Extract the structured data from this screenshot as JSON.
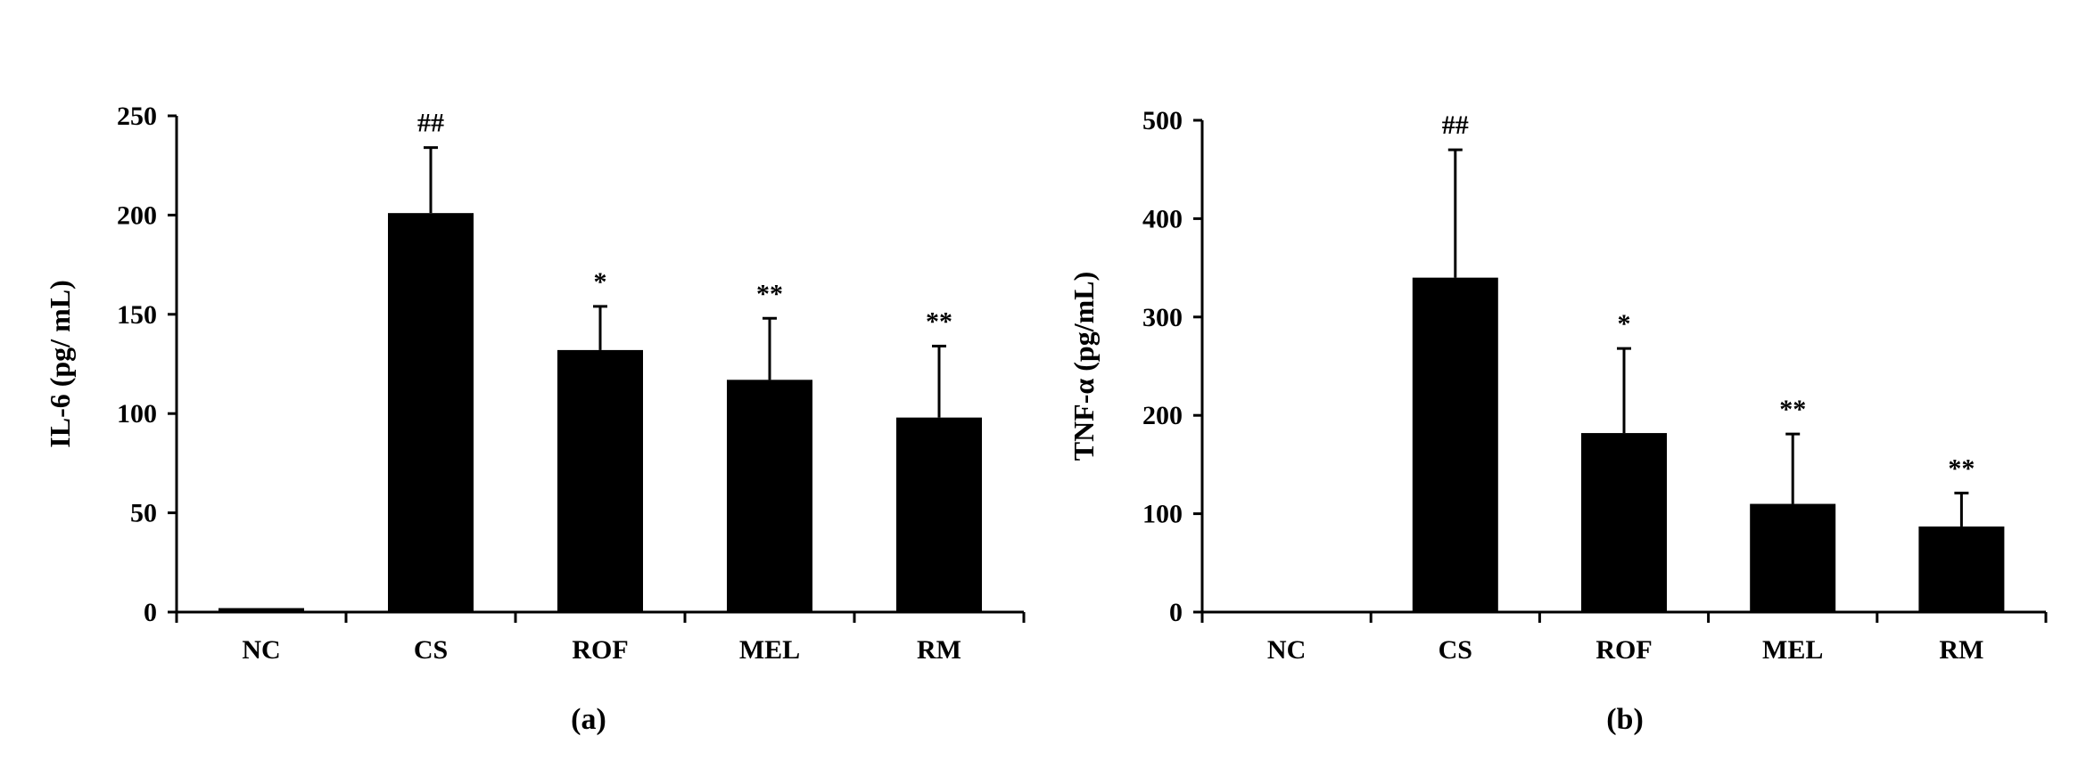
{
  "chart_data": [
    {
      "type": "bar",
      "panel_label": "(a)",
      "ylabel": "IL-6 (pg/ mL)",
      "categories": [
        "NC",
        "CS",
        "ROF",
        "MEL",
        "RM"
      ],
      "values": [
        2,
        201,
        132,
        117,
        98
      ],
      "errors": [
        0,
        33,
        22,
        31,
        36
      ],
      "significance": [
        "",
        "##",
        "*",
        "**",
        "**"
      ],
      "ylim": [
        0,
        250
      ],
      "yticks": [
        0,
        50,
        100,
        150,
        200,
        250
      ],
      "grid": false,
      "bar_color": "#000000"
    },
    {
      "type": "bar",
      "panel_label": "(b)",
      "ylabel": "TNF-α (pg/mL)",
      "categories": [
        "NC",
        "CS",
        "ROF",
        "MEL",
        "RM"
      ],
      "values": [
        0,
        340,
        182,
        110,
        87
      ],
      "errors": [
        0,
        130,
        86,
        71,
        34
      ],
      "significance": [
        "",
        "##",
        "*",
        "**",
        "**"
      ],
      "ylim": [
        0,
        500
      ],
      "yticks": [
        0,
        100,
        200,
        300,
        400,
        500
      ],
      "grid": false,
      "bar_color": "#000000"
    }
  ]
}
